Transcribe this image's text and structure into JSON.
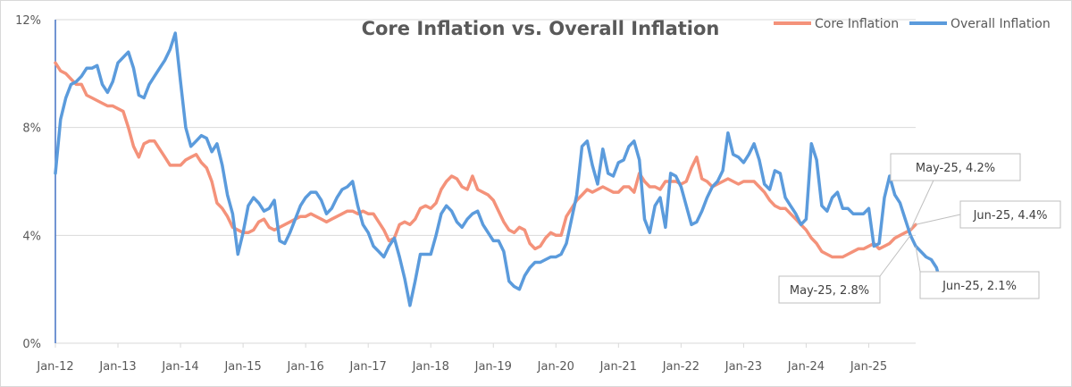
{
  "chart_data": {
    "type": "line",
    "title": "Core Inflation vs. Overall Inflation",
    "xlabel": "",
    "ylabel": "",
    "ylim": [
      0,
      12
    ],
    "yticks": [
      "0%",
      "4%",
      "8%",
      "12%"
    ],
    "xticks": [
      "Jan-12",
      "Jan-13",
      "Jan-14",
      "Jan-15",
      "Jan-16",
      "Jan-17",
      "Jan-18",
      "Jan-19",
      "Jan-20",
      "Jan-21",
      "Jan-22",
      "Jan-23",
      "Jan-24",
      "Jan-25"
    ],
    "grid": "horizontal",
    "legend_position": "top-right",
    "colors": {
      "core": "#f4927a",
      "overall": "#5b9bdc",
      "gridline": "#d9d9d9",
      "callout_border": "#bfbfbf"
    },
    "series": [
      {
        "name": "Core Inflation",
        "values": [
          10.4,
          10.1,
          10.0,
          9.8,
          9.6,
          9.6,
          9.2,
          9.1,
          9.0,
          8.9,
          8.8,
          8.8,
          8.7,
          8.6,
          8.0,
          7.3,
          6.9,
          7.4,
          7.5,
          7.5,
          7.2,
          6.9,
          6.6,
          6.6,
          6.6,
          6.8,
          6.9,
          7.0,
          6.7,
          6.5,
          6.0,
          5.2,
          5.0,
          4.7,
          4.3,
          4.2,
          4.1,
          4.1,
          4.2,
          4.5,
          4.6,
          4.3,
          4.2,
          4.3,
          4.4,
          4.5,
          4.6,
          4.7,
          4.7,
          4.8,
          4.7,
          4.6,
          4.5,
          4.6,
          4.7,
          4.8,
          4.9,
          4.9,
          4.8,
          4.9,
          4.8,
          4.8,
          4.5,
          4.2,
          3.8,
          3.9,
          4.4,
          4.5,
          4.4,
          4.6,
          5.0,
          5.1,
          5.0,
          5.2,
          5.7,
          6.0,
          6.2,
          6.1,
          5.8,
          5.7,
          6.2,
          5.7,
          5.6,
          5.5,
          5.3,
          4.9,
          4.5,
          4.2,
          4.1,
          4.3,
          4.2,
          3.7,
          3.5,
          3.6,
          3.9,
          4.1,
          4.0,
          4.0,
          4.7,
          5.0,
          5.3,
          5.5,
          5.7,
          5.6,
          5.7,
          5.8,
          5.7,
          5.6,
          5.6,
          5.8,
          5.8,
          5.6,
          6.3,
          6.0,
          5.8,
          5.8,
          5.7,
          6.0,
          6.0,
          6.0,
          5.9,
          6.0,
          6.5,
          6.9,
          6.1,
          6.0,
          5.8,
          5.9,
          6.0,
          6.1,
          6.0,
          5.9,
          6.0,
          6.0,
          6.0,
          5.8,
          5.6,
          5.3,
          5.1,
          5.0,
          5.0,
          4.8,
          4.6,
          4.4,
          4.2,
          3.9,
          3.7,
          3.4,
          3.3,
          3.2,
          3.2,
          3.2,
          3.3,
          3.4,
          3.5,
          3.5,
          3.6,
          3.7,
          3.5,
          3.6,
          3.7,
          3.9,
          4.0,
          4.1,
          4.2,
          4.4
        ]
      },
      {
        "name": "Overall Inflation",
        "values": [
          6.3,
          8.3,
          9.1,
          9.6,
          9.7,
          9.9,
          10.2,
          10.2,
          10.3,
          9.6,
          9.3,
          9.7,
          10.4,
          10.6,
          10.8,
          10.2,
          9.2,
          9.1,
          9.6,
          9.9,
          10.2,
          10.5,
          10.9,
          11.5,
          9.7,
          8.0,
          7.3,
          7.5,
          7.7,
          7.6,
          7.1,
          7.4,
          6.6,
          5.5,
          4.8,
          3.3,
          4.1,
          5.1,
          5.4,
          5.2,
          4.9,
          5.0,
          5.3,
          3.8,
          3.7,
          4.1,
          4.6,
          5.1,
          5.4,
          5.6,
          5.6,
          5.3,
          4.8,
          5.0,
          5.4,
          5.7,
          5.8,
          6.0,
          5.1,
          4.4,
          4.1,
          3.6,
          3.4,
          3.2,
          3.6,
          3.9,
          3.2,
          2.4,
          1.4,
          2.3,
          3.3,
          3.3,
          3.3,
          4.0,
          4.8,
          5.1,
          4.9,
          4.5,
          4.3,
          4.6,
          4.8,
          4.9,
          4.4,
          4.1,
          3.8,
          3.8,
          3.4,
          2.3,
          2.1,
          2.0,
          2.5,
          2.8,
          3.0,
          3.0,
          3.1,
          3.2,
          3.2,
          3.3,
          3.7,
          4.6,
          5.5,
          7.3,
          7.5,
          6.6,
          5.9,
          7.2,
          6.3,
          6.2,
          6.7,
          6.8,
          7.3,
          7.5,
          6.8,
          4.6,
          4.1,
          5.1,
          5.4,
          4.3,
          6.3,
          6.2,
          5.8,
          5.1,
          4.4,
          4.5,
          4.9,
          5.4,
          5.8,
          6.0,
          6.4,
          7.8,
          7.0,
          6.9,
          6.7,
          7.0,
          7.4,
          6.8,
          5.9,
          5.7,
          6.4,
          6.3,
          5.4,
          5.1,
          4.8,
          4.4,
          4.6,
          7.4,
          6.8,
          5.1,
          4.9,
          5.4,
          5.6,
          5.0,
          5.0,
          4.8,
          4.8,
          4.8,
          5.0,
          3.6,
          3.7,
          5.4,
          6.2,
          5.5,
          5.2,
          4.6,
          4.0,
          3.6,
          3.4,
          3.2,
          3.1,
          2.8,
          2.1
        ]
      }
    ],
    "annotations": [
      {
        "text": "May-25, 4.2%",
        "series": "Core Inflation",
        "x": "May-25",
        "y": 4.2
      },
      {
        "text": "Jun-25, 4.4%",
        "series": "Core Inflation",
        "x": "Jun-25",
        "y": 4.4
      },
      {
        "text": "May-25, 2.8%",
        "series": "Overall Inflation",
        "x": "May-25",
        "y": 2.8
      },
      {
        "text": "Jun-25, 2.1%",
        "series": "Overall Inflation",
        "x": "Jun-25",
        "y": 2.1
      }
    ]
  }
}
